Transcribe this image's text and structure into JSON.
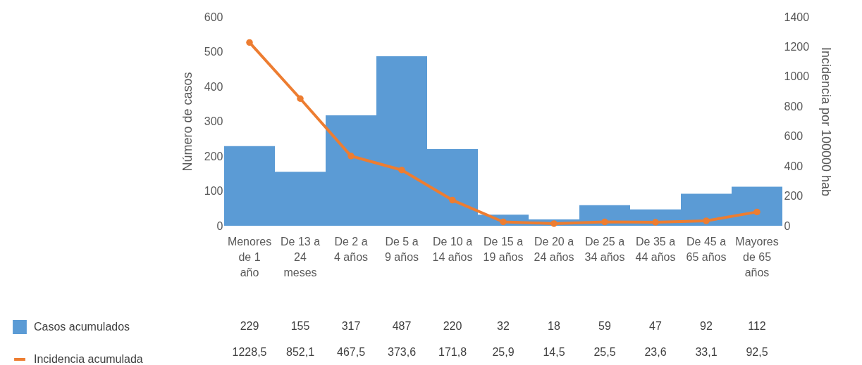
{
  "chart_data": {
    "type": "bar",
    "categories": [
      "Menores de 1 año",
      "De 13 a 24 meses",
      "De 2 a 4 años",
      "De 5 a 9 años",
      "De 10 a 14 años",
      "De 15 a 19 años",
      "De 20 a 24 años",
      "De 25 a 34 años",
      "De 35 a 44 años",
      "De 45 a 65 años",
      "Mayores de 65 años"
    ],
    "series": [
      {
        "name": "Casos acumulados",
        "color": "#5b9bd5",
        "values": [
          229,
          155,
          317,
          487,
          220,
          32,
          18,
          59,
          47,
          92,
          112
        ],
        "value_labels": [
          "229",
          "155",
          "317",
          "487",
          "220",
          "32",
          "18",
          "59",
          "47",
          "92",
          "112"
        ]
      },
      {
        "name": "Incidencia acumulada",
        "type": "line",
        "axis": "y2",
        "color": "#ed7d31",
        "marker": "circle",
        "values": [
          1228.5,
          852.1,
          467.5,
          373.6,
          171.8,
          25.9,
          14.5,
          25.5,
          23.6,
          33.1,
          92.5
        ],
        "value_labels": [
          "1228,5",
          "852,1",
          "467,5",
          "373,6",
          "171,8",
          "25,9",
          "14,5",
          "25,5",
          "23,6",
          "33,1",
          "92,5"
        ]
      }
    ],
    "ylabel": "Número de casos",
    "y2label": "Incidencia por 100000 hab",
    "ylim": [
      0,
      600
    ],
    "yticks": [
      0,
      100,
      200,
      300,
      400,
      500,
      600
    ],
    "y2lim": [
      0,
      1400
    ],
    "y2ticks": [
      0,
      200,
      400,
      600,
      800,
      1000,
      1200,
      1400
    ],
    "legend": "bottom left",
    "grid": false
  }
}
